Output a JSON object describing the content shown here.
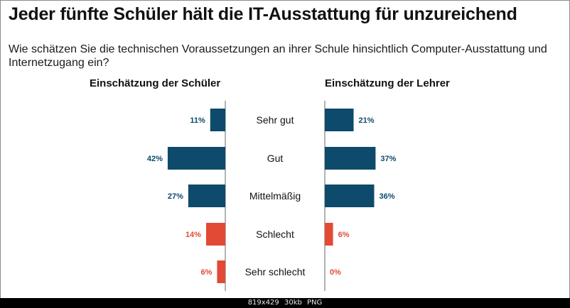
{
  "title": "Jeder fünfte Schüler hält die IT-Ausstattung für unzureichend",
  "subtitle": "Wie schätzen Sie die technischen Voraussetzungen an ihrer Schule hinsichtlich Computer-Ausstattung und Internetzugang ein?",
  "colors": {
    "positive": "#0d4a6b",
    "negative": "#e24a35",
    "axis": "#666666"
  },
  "chart_data": {
    "type": "bar",
    "orientation": "horizontal-butterfly",
    "categories": [
      "Sehr gut",
      "Gut",
      "Mittelmäßig",
      "Schlecht",
      "Sehr schlecht"
    ],
    "unit": "%",
    "xlim": [
      0,
      50
    ],
    "series": [
      {
        "name": "Einschätzung der Schüler",
        "side": "left",
        "values": [
          11,
          42,
          27,
          14,
          6
        ]
      },
      {
        "name": "Einschätzung der Lehrer",
        "side": "right",
        "values": [
          21,
          37,
          36,
          6,
          0
        ]
      }
    ],
    "negative_categories": [
      "Schlecht",
      "Sehr schlecht"
    ]
  },
  "footer": {
    "dimensions": "819x429",
    "size": "30kb",
    "format": "PNG"
  }
}
